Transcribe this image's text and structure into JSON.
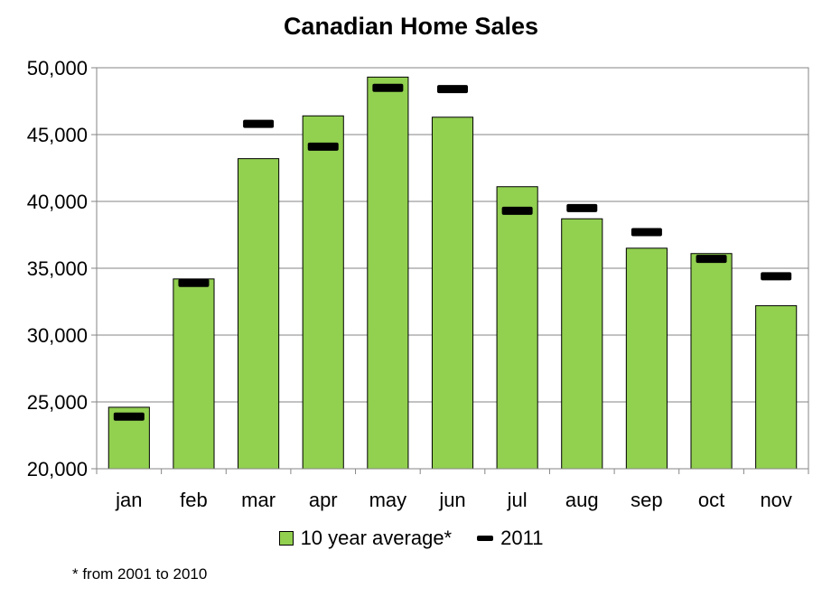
{
  "chart_data": {
    "type": "bar",
    "title": "Canadian Home Sales",
    "categories": [
      "jan",
      "feb",
      "mar",
      "apr",
      "may",
      "jun",
      "jul",
      "aug",
      "sep",
      "oct",
      "nov"
    ],
    "series": [
      {
        "name": "10 year average*",
        "kind": "bar",
        "values": [
          24600,
          34200,
          43200,
          46400,
          49300,
          46300,
          41100,
          38700,
          36500,
          36100,
          32200
        ]
      },
      {
        "name": "2011",
        "kind": "marker",
        "values": [
          23900,
          33900,
          45800,
          44100,
          48500,
          48400,
          39300,
          39500,
          37700,
          35700,
          34400
        ]
      }
    ],
    "ylim": [
      20000,
      50000
    ],
    "yticks": [
      "20,000",
      "25,000",
      "30,000",
      "35,000",
      "40,000",
      "45,000",
      "50,000"
    ],
    "ytick_values": [
      20000,
      25000,
      30000,
      35000,
      40000,
      45000,
      50000
    ],
    "grid": true,
    "legend": "bottom",
    "footnote": "* from 2001 to 2010"
  },
  "colors": {
    "bar_fill": "#92d050",
    "marker": "#000000",
    "grid": "#868686"
  }
}
